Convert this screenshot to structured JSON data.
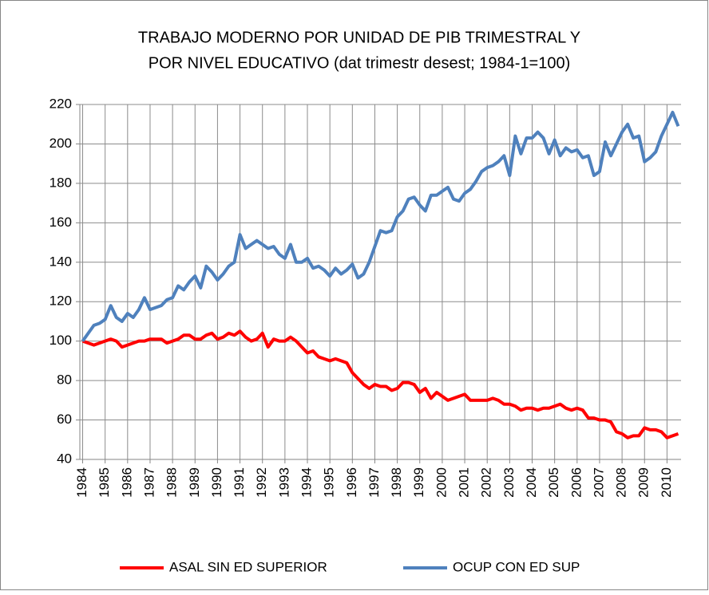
{
  "chart_data": {
    "type": "line",
    "title": [
      "TRABAJO MODERNO POR UNIDAD DE PIB TRIMESTRAL Y",
      "POR NIVEL EDUCATIVO (dat trimestr desest; 1984-1=100)"
    ],
    "categories": [
      "1984",
      null,
      null,
      null,
      "1985",
      null,
      null,
      null,
      "1986",
      null,
      null,
      null,
      "1987",
      null,
      null,
      null,
      "1988",
      null,
      null,
      null,
      "1989",
      null,
      null,
      null,
      "1990",
      null,
      null,
      null,
      "1991",
      null,
      null,
      null,
      "1992",
      null,
      null,
      null,
      "1993",
      null,
      null,
      null,
      "1994",
      null,
      null,
      null,
      "1995",
      null,
      null,
      null,
      "1996",
      null,
      null,
      null,
      "1997",
      null,
      null,
      null,
      "1998",
      null,
      null,
      null,
      "1999",
      null,
      null,
      null,
      "2000",
      null,
      null,
      null,
      "2001",
      null,
      null,
      null,
      "2002",
      null,
      null,
      null,
      "2003",
      null,
      null,
      null,
      "2004",
      null,
      null,
      null,
      "2005",
      null,
      null,
      null,
      "2006",
      null,
      null,
      null,
      "2007",
      null,
      null,
      null,
      "2008",
      null,
      null,
      null,
      "2009",
      null,
      null,
      null,
      "2010",
      null,
      null
    ],
    "series": [
      {
        "name": "ASAL SIN ED SUPERIOR",
        "color": "#ff0000",
        "values": [
          100,
          99,
          98,
          99,
          100,
          101,
          100,
          97,
          98,
          99,
          100,
          100,
          101,
          101,
          101,
          99,
          100,
          101,
          103,
          103,
          101,
          101,
          103,
          104,
          101,
          102,
          104,
          103,
          105,
          102,
          100,
          101,
          104,
          97,
          101,
          100,
          100,
          102,
          100,
          97,
          94,
          95,
          92,
          91,
          90,
          91,
          90,
          89,
          84,
          81,
          78,
          76,
          78,
          77,
          77,
          75,
          76,
          79,
          79,
          78,
          74,
          76,
          71,
          74,
          72,
          70,
          71,
          72,
          73,
          70,
          70,
          70,
          70,
          71,
          70,
          68,
          68,
          67,
          65,
          66,
          66,
          65,
          66,
          66,
          67,
          68,
          66,
          65,
          66,
          65,
          61,
          61,
          60,
          60,
          59,
          54,
          53,
          51,
          52,
          52,
          56,
          55,
          55,
          54,
          51,
          52,
          53
        ]
      },
      {
        "name": "OCUP CON ED SUP",
        "color": "#4f81bd",
        "values": [
          100,
          104,
          108,
          109,
          111,
          118,
          112,
          110,
          114,
          112,
          116,
          122,
          116,
          117,
          118,
          121,
          122,
          128,
          126,
          130,
          133,
          127,
          138,
          135,
          131,
          134,
          138,
          140,
          154,
          147,
          149,
          151,
          149,
          147,
          148,
          144,
          142,
          149,
          140,
          140,
          142,
          137,
          138,
          136,
          133,
          137,
          134,
          136,
          139,
          132,
          134,
          140,
          148,
          156,
          155,
          156,
          163,
          166,
          172,
          173,
          169,
          166,
          174,
          174,
          176,
          178,
          172,
          171,
          175,
          177,
          181,
          186,
          188,
          189,
          191,
          194,
          184,
          204,
          195,
          203,
          203,
          206,
          203,
          195,
          202,
          194,
          198,
          196,
          197,
          193,
          194,
          184,
          186,
          201,
          194,
          200,
          206,
          210,
          203,
          204,
          191,
          193,
          196,
          204,
          210,
          216,
          209
        ]
      }
    ],
    "ylim": [
      40,
      220
    ],
    "yticks": [
      40,
      60,
      80,
      100,
      120,
      140,
      160,
      180,
      200,
      220
    ],
    "grid": true,
    "legend": "bottom"
  }
}
